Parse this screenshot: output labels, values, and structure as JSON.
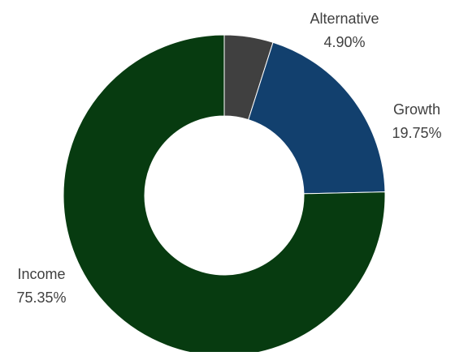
{
  "chart_data": {
    "type": "pie",
    "variant": "donut",
    "title": "",
    "legend": "none",
    "slices": [
      {
        "label": "Alternative",
        "value": 4.9,
        "value_label": "4.90%",
        "color": "#404040"
      },
      {
        "label": "Growth",
        "value": 19.75,
        "value_label": "19.75%",
        "color": "#12406E"
      },
      {
        "label": "Income",
        "value": 75.35,
        "value_label": "75.35%",
        "color": "#073B10"
      }
    ]
  }
}
